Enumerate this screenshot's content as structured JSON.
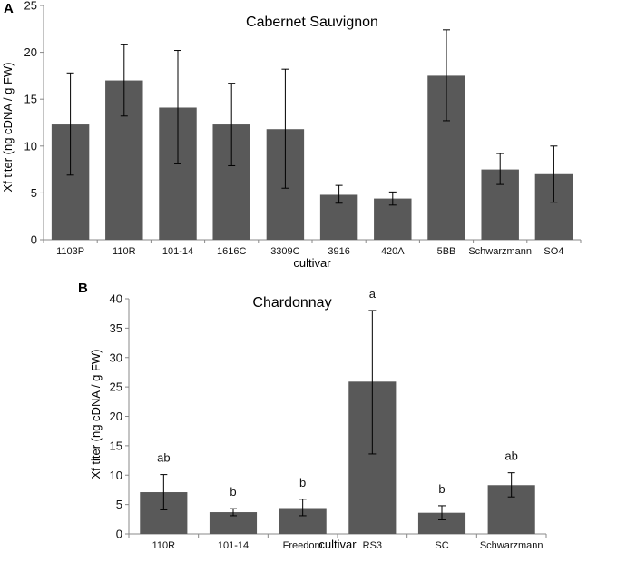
{
  "chart_data": [
    {
      "type": "bar",
      "panel_label": "A",
      "title": "Cabernet Sauvignon",
      "xlabel": "cultivar",
      "ylabel": "Xf titer (ng cDNA / g FW)",
      "ylim": [
        0,
        25
      ],
      "yticks": [
        0,
        5,
        10,
        15,
        20,
        25
      ],
      "grid": false,
      "bar_color": "#595959",
      "categories": [
        "1103P",
        "110R",
        "101-14",
        "1616C",
        "3309C",
        "3916",
        "420A",
        "5BB",
        "Schwarzmann",
        "SO4"
      ],
      "values": [
        12.3,
        17.0,
        14.1,
        12.3,
        11.8,
        4.8,
        4.4,
        17.5,
        7.5,
        7.0
      ],
      "error_low": [
        6.9,
        13.2,
        8.1,
        7.9,
        5.5,
        3.9,
        3.7,
        12.7,
        5.9,
        4.0
      ],
      "error_high": [
        17.8,
        20.8,
        20.2,
        16.7,
        18.2,
        5.8,
        5.1,
        22.4,
        9.2,
        10.0
      ]
    },
    {
      "type": "bar",
      "panel_label": "B",
      "title": "Chardonnay",
      "xlabel": "cultivar",
      "ylabel": "Xf titer (ng cDNA / g FW)",
      "ylim": [
        0,
        40
      ],
      "yticks": [
        0,
        5,
        10,
        15,
        20,
        25,
        30,
        35,
        40
      ],
      "grid": false,
      "bar_color": "#595959",
      "categories": [
        "110R",
        "101-14",
        "Freedom",
        "RS3",
        "SC",
        "Schwarzmann"
      ],
      "values": [
        7.1,
        3.7,
        4.4,
        25.9,
        3.6,
        8.3
      ],
      "error_low": [
        4.1,
        3.1,
        3.1,
        13.6,
        2.4,
        6.3
      ],
      "error_high": [
        10.1,
        4.3,
        5.9,
        38.0,
        4.8,
        10.4
      ],
      "significance": [
        "ab",
        "b",
        "b",
        "a",
        "b",
        "ab"
      ]
    }
  ]
}
